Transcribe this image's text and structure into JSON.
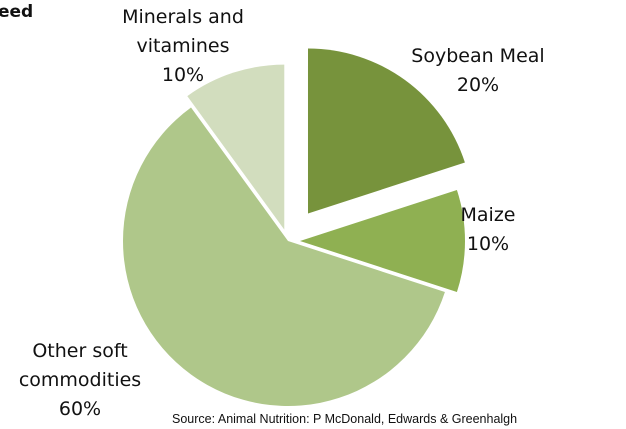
{
  "chart_data": {
    "type": "pie",
    "title": "eed",
    "categories": [
      "Soybean Meal",
      "Maize",
      "Other soft commodities",
      "Minerals and vitamines"
    ],
    "values": [
      20,
      10,
      60,
      10
    ],
    "value_labels": [
      "20%",
      "10%",
      "60%",
      "10%"
    ],
    "colors": [
      "#77933c",
      "#8fb052",
      "#afc78a",
      "#d2ddbe"
    ],
    "source": "Source: Animal Nutrition: P McDonald, Edwards & Greenhalgh"
  }
}
